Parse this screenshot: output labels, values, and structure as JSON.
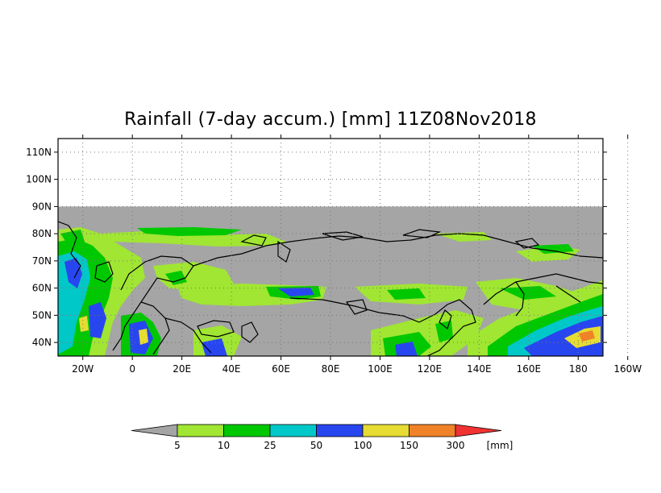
{
  "title": "Rainfall (7-day accum.) [mm] 11Z08Nov2018",
  "axes": {
    "lat_labels": [
      "110N",
      "100N",
      "90N",
      "80N",
      "70N",
      "60N",
      "50N",
      "40N"
    ],
    "lon_labels": [
      "20W",
      "0",
      "20E",
      "40E",
      "60E",
      "80E",
      "100E",
      "120E",
      "140E",
      "160E",
      "180",
      "160W"
    ],
    "lon_range": [
      -30,
      190
    ],
    "lat_range": [
      35,
      115
    ],
    "data_lat_max": 90,
    "grid": true
  },
  "colorbar": {
    "unit_label": "[mm]",
    "thresholds": [
      "5",
      "10",
      "25",
      "50",
      "100",
      "150",
      "300"
    ],
    "colors": [
      "#a5a5a5",
      "#a0e632",
      "#00c800",
      "#00c8c8",
      "#2846f0",
      "#e6dc32",
      "#f08228",
      "#f03232"
    ]
  },
  "colors": {
    "no_rain": "#a5a5a5",
    "outside_domain": "#ffffff",
    "coastline": "#000000"
  }
}
